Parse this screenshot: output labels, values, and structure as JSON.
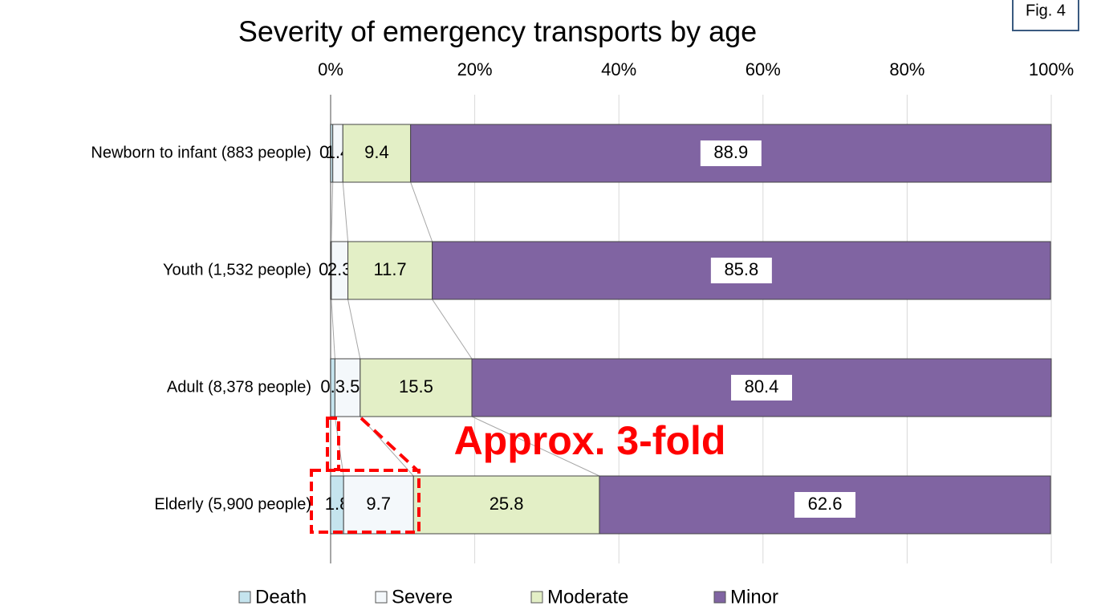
{
  "chart_data": {
    "type": "stacked_bar_horizontal",
    "title": "Severity of emergency transports by age",
    "annotations": [
      "Approx. 3-fold",
      "Fig. 4"
    ],
    "categories": [
      "Newborn to infant (883 people)",
      "Youth (1,532 people)",
      "Adult (8,378 people)",
      "Elderly (5,900 people)"
    ],
    "series": [
      {
        "name": "Death",
        "color": "#c5e4ee",
        "values": [
          0.3,
          0.1,
          0.6,
          1.8
        ]
      },
      {
        "name": "Severe",
        "color": "#f4f8fb",
        "values": [
          1.4,
          2.3,
          3.5,
          9.7
        ]
      },
      {
        "name": "Moderate",
        "color": "#e3efc6",
        "values": [
          9.4,
          11.7,
          15.5,
          25.8
        ]
      },
      {
        "name": "Minor",
        "color": "#8064a2",
        "values": [
          88.9,
          85.8,
          80.4,
          62.6
        ]
      }
    ],
    "xlim": [
      0,
      100
    ],
    "xticks": [
      {
        "value": 0,
        "label": "0%"
      },
      {
        "value": 20,
        "label": "20%"
      },
      {
        "value": 40,
        "label": "40%"
      },
      {
        "value": 60,
        "label": "60%"
      },
      {
        "value": 80,
        "label": "80%"
      },
      {
        "value": 100,
        "label": "100%"
      }
    ],
    "grid": true,
    "legend": "bottom"
  }
}
